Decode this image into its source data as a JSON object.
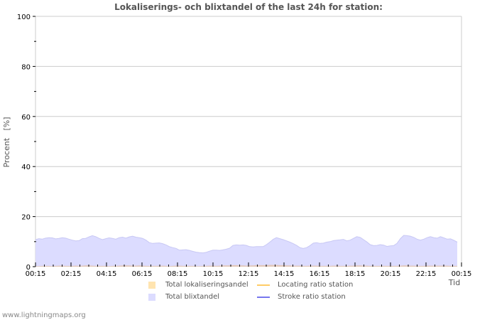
{
  "chart_data": {
    "type": "area",
    "title": "Lokaliserings- och blixtandel of the last 24h for station:",
    "xlabel": "Tid",
    "ylabel": "Procent   [%]",
    "ylim": [
      0,
      100
    ],
    "yticks": [
      0,
      20,
      40,
      60,
      80,
      100
    ],
    "xticks": [
      "00:15",
      "02:15",
      "04:15",
      "06:15",
      "08:15",
      "10:15",
      "12:15",
      "14:15",
      "16:15",
      "18:15",
      "20:15",
      "22:15",
      "00:15"
    ],
    "grid": true,
    "legend_position": "bottom",
    "legend": [
      {
        "label": "Total lokaliseringsandel",
        "kind": "area",
        "color": "#ffe4b0"
      },
      {
        "label": "Total blixtandel",
        "kind": "area",
        "color": "#dcdcff"
      },
      {
        "label": "Locating ratio station",
        "kind": "line",
        "color": "#ffcc66"
      },
      {
        "label": "Stroke ratio station",
        "kind": "line",
        "color": "#7777ee"
      }
    ],
    "series": [
      {
        "name": "Total blixtandel",
        "color": "#dcdcff",
        "values": [
          10.8,
          11.2,
          11.0,
          11.4,
          11.6,
          11.5,
          11.1,
          11.3,
          11.6,
          11.4,
          11.0,
          10.6,
          10.3,
          10.4,
          11.2,
          11.3,
          11.9,
          12.4,
          12.0,
          11.3,
          10.8,
          11.2,
          11.5,
          11.3,
          11.0,
          11.6,
          11.8,
          11.4,
          11.9,
          12.2,
          11.8,
          11.6,
          11.3,
          10.6,
          9.6,
          9.3,
          9.4,
          9.5,
          9.2,
          8.7,
          8.0,
          7.6,
          7.3,
          6.6,
          6.7,
          6.8,
          6.5,
          6.1,
          5.8,
          5.6,
          5.5,
          5.7,
          6.2,
          6.6,
          6.6,
          6.5,
          6.7,
          7.0,
          7.4,
          8.5,
          8.7,
          8.6,
          8.7,
          8.5,
          8.0,
          7.9,
          8.0,
          8.0,
          8.0,
          8.8,
          9.8,
          10.9,
          11.6,
          11.2,
          10.8,
          10.3,
          9.8,
          9.2,
          8.5,
          7.6,
          7.3,
          7.6,
          8.4,
          9.4,
          9.6,
          9.3,
          9.4,
          9.8,
          10.0,
          10.4,
          10.6,
          10.7,
          10.9,
          10.3,
          10.6,
          11.3,
          12.0,
          11.7,
          10.8,
          9.9,
          8.8,
          8.4,
          8.5,
          8.8,
          8.6,
          8.1,
          8.3,
          8.4,
          9.3,
          11.2,
          12.5,
          12.4,
          12.2,
          11.7,
          11.0,
          10.6,
          11.0,
          11.6,
          12.0,
          11.6,
          11.4,
          12.0,
          11.5,
          11.0,
          11.1,
          10.5,
          9.8
        ]
      },
      {
        "name": "Total lokaliseringsandel",
        "color": "#ffe4b0",
        "values": [
          0.2,
          0.2,
          0.3,
          0.3,
          0.3,
          0.2,
          0.3,
          0.4,
          0.4,
          0.3,
          0.3,
          0.3,
          0.4,
          0.3,
          0.4,
          0.5,
          0.5,
          0.4,
          0.3,
          0.3,
          0.3,
          0.3,
          0.2,
          0.3,
          0.3,
          0.4,
          0.5,
          0.5,
          0.5,
          0.4,
          0.4,
          0.5,
          0.4,
          0.3,
          0.3,
          0.3,
          0.3,
          0.3,
          0.4,
          0.3,
          0.2,
          0.3,
          0.4,
          0.4,
          0.3,
          0.3,
          0.3,
          0.3,
          0.2,
          0.2,
          0.3,
          0.3,
          0.4,
          0.4,
          0.3,
          0.4,
          0.5,
          0.5,
          0.5,
          0.6,
          0.6,
          0.5,
          0.5,
          0.4,
          0.5,
          0.5,
          0.6,
          0.6,
          0.6,
          0.6,
          0.7,
          0.7,
          0.7,
          0.6,
          0.6,
          0.5,
          0.5,
          0.4,
          0.4,
          0.4,
          0.3,
          0.3,
          0.4,
          0.4,
          0.4,
          0.3,
          0.3,
          0.3,
          0.3,
          0.4,
          0.4,
          0.3,
          0.3,
          0.3,
          0.4,
          0.4,
          0.5,
          0.5,
          0.4,
          0.4,
          0.3,
          0.3,
          0.3,
          0.3,
          0.3,
          0.3,
          0.3,
          0.3,
          0.3,
          0.4,
          0.5,
          0.5,
          0.4,
          0.4,
          0.3,
          0.3,
          0.3,
          0.4,
          0.4,
          0.4,
          0.4,
          0.4,
          0.4,
          0.4,
          0.3,
          0.3,
          0.3
        ]
      }
    ]
  },
  "footer": {
    "site": "www.lightningmaps.org"
  }
}
